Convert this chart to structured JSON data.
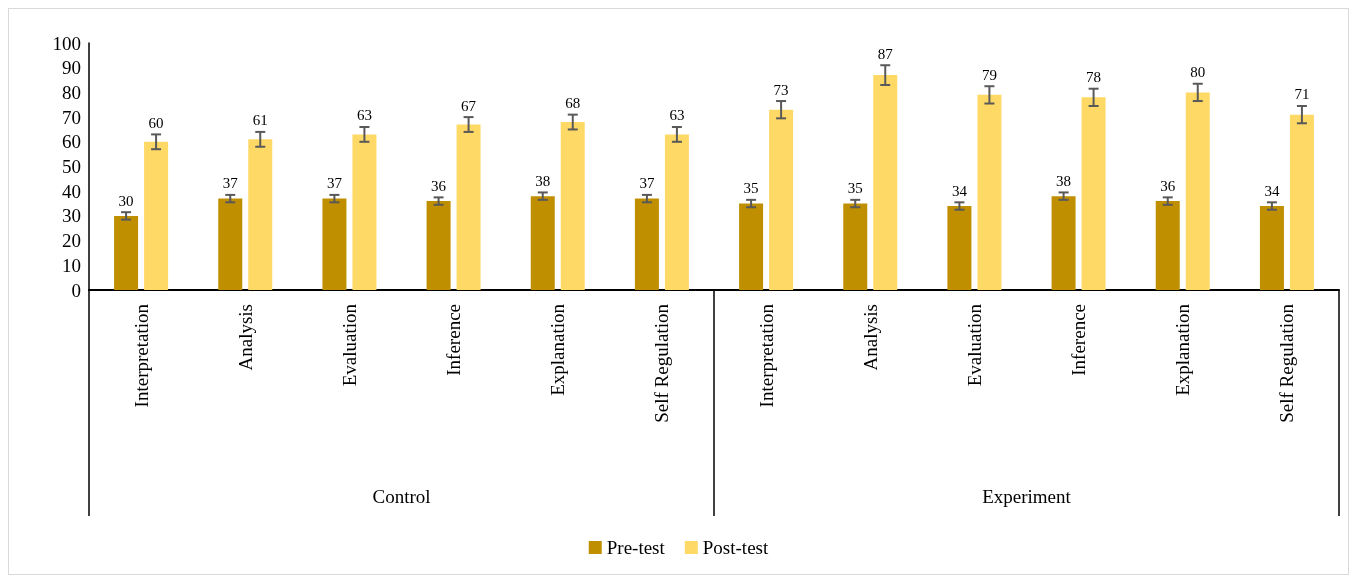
{
  "chart_data": {
    "type": "bar",
    "categories": [
      "Interpretation",
      "Analysis",
      "Evaluation",
      "Inference",
      "Explanation",
      "Self Regulation",
      "Interpretation",
      "Analysis",
      "Evaluation",
      "Inference",
      "Explanation",
      "Self Regulation"
    ],
    "annotations": [
      "Control",
      "Experiment"
    ],
    "series": [
      {
        "name": "Pre-test",
        "color": "#bf8f00",
        "values": [
          30,
          37,
          37,
          36,
          38,
          37,
          35,
          35,
          34,
          38,
          36,
          34
        ],
        "errors": [
          1.5,
          1.5,
          1.5,
          1.5,
          1.5,
          1.5,
          1.5,
          1.5,
          1.5,
          1.5,
          1.5,
          1.5
        ]
      },
      {
        "name": "Post-test",
        "color": "#ffd966",
        "values": [
          60,
          61,
          63,
          67,
          68,
          63,
          73,
          87,
          79,
          78,
          80,
          71
        ],
        "errors": [
          3,
          3,
          3,
          3,
          3,
          3,
          3.5,
          4,
          3.5,
          3.5,
          3.5,
          3.5
        ]
      }
    ],
    "ylim": [
      0,
      100
    ],
    "yticks": [
      0,
      10,
      20,
      30,
      40,
      50,
      60,
      70,
      80,
      90,
      100
    ],
    "grid": false,
    "legend": "bottom",
    "data_labels": true
  }
}
